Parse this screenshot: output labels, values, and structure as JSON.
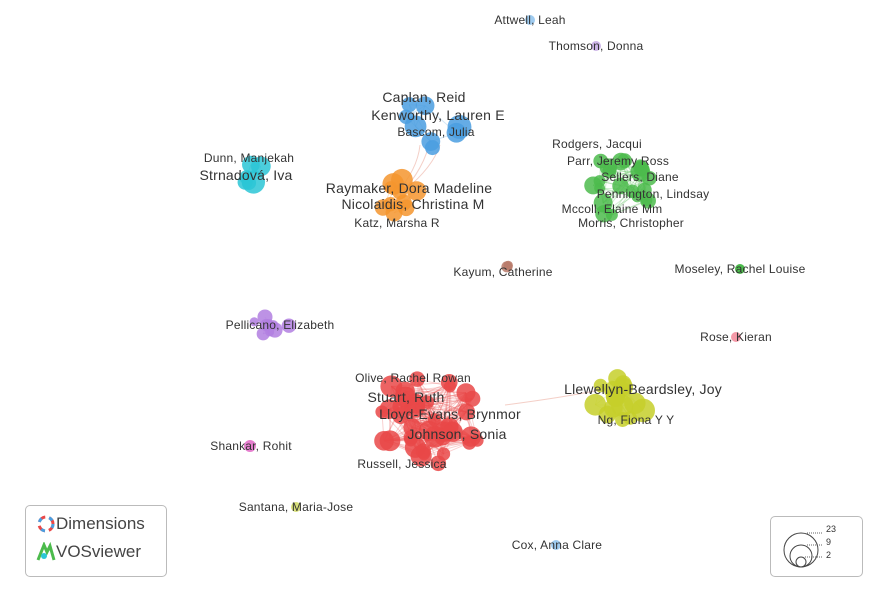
{
  "colors": {
    "blue": "#4a9ee0",
    "orange": "#f5952e",
    "green": "#4cbb4c",
    "cyan": "#2cc6d6",
    "purple": "#b27fe0",
    "red": "#e94848",
    "yellow": "#c5cf2a",
    "brown": "#b97a6a",
    "pink": "#f59aa8",
    "magenta": "#e67fcf",
    "lightblue": "#9fcbef",
    "lavender": "#cdb5e8",
    "lime": "#d8e07a"
  },
  "labels": [
    {
      "text": "Attwell, Leah",
      "color": "lightblue"
    },
    {
      "text": "Thomson, Donna",
      "color": "lavender"
    },
    {
      "text": "Caplan, Reid",
      "color": "blue"
    },
    {
      "text": "Kenworthy, Lauren E",
      "color": "blue"
    },
    {
      "text": "Bascom, Julia",
      "color": "blue"
    },
    {
      "text": "Dunn, Manjekah",
      "color": "cyan"
    },
    {
      "text": "Strnadová, Iva",
      "color": "cyan"
    },
    {
      "text": "Raymaker, Dora Madeline",
      "color": "orange"
    },
    {
      "text": "Nicolaidis, Christina M",
      "color": "orange"
    },
    {
      "text": "Katz, Marsha R",
      "color": "orange"
    },
    {
      "text": "Rodgers, Jacqui",
      "color": "green"
    },
    {
      "text": "Parr, Jeremy Ross",
      "color": "green"
    },
    {
      "text": "Sellers, Diane",
      "color": "green"
    },
    {
      "text": "Pennington, Lindsay",
      "color": "green"
    },
    {
      "text": "Mccoll, Elaine Mm",
      "color": "green"
    },
    {
      "text": "Morris, Christopher",
      "color": "green"
    },
    {
      "text": "Kayum, Catherine",
      "color": "brown"
    },
    {
      "text": "Moseley, Rachel Louise",
      "color": "green"
    },
    {
      "text": "Pellicano, Elizabeth",
      "color": "purple"
    },
    {
      "text": "Rose, Kieran",
      "color": "pink"
    },
    {
      "text": "Olive, Rachel Rowan",
      "color": "red"
    },
    {
      "text": "Stuart, Ruth",
      "color": "red"
    },
    {
      "text": "Lloyd-Evans, Brynmor",
      "color": "red"
    },
    {
      "text": "Johnson, Sonia",
      "color": "red"
    },
    {
      "text": "Russell, Jessica",
      "color": "red"
    },
    {
      "text": "Llewellyn-Beardsley, Joy",
      "color": "yellow"
    },
    {
      "text": "Ng, Fiona Y Y",
      "color": "yellow"
    },
    {
      "text": "Shankar, Rohit",
      "color": "magenta"
    },
    {
      "text": "Santana, Maria-Jose",
      "color": "lime"
    },
    {
      "text": "Cox, Anna Clare",
      "color": "lightblue"
    }
  ],
  "branding": {
    "dimensions": "Dimensions",
    "vosviewer": "VOSviewer"
  },
  "legend": {
    "values": [
      "23",
      "9",
      "2"
    ]
  }
}
